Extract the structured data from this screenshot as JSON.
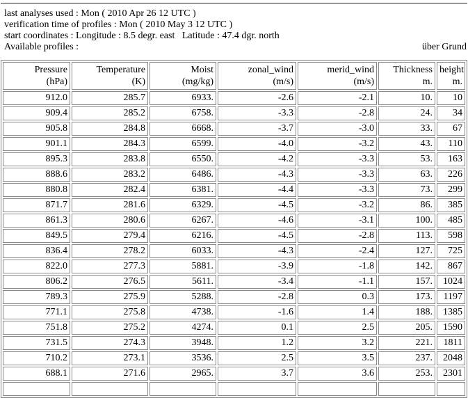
{
  "header": {
    "lines": [
      "last analyses used : Mon ( 2010 Apr 26 12 UTC )",
      "verification time of profiles : Mon ( 2010 May 3 12 UTC )",
      "start coordinates : Longitude : 8.5 degr. east   Latitude : 47.4 dgr. north"
    ],
    "available_profiles_label": "Available profiles :",
    "above_ground_note": "über Grund"
  },
  "table": {
    "columns": [
      {
        "label": "Pressure",
        "unit": "(hPa)"
      },
      {
        "label": "Temperature",
        "unit": "(K)"
      },
      {
        "label": "Moist",
        "unit": "(mg/kg)"
      },
      {
        "label": "zonal_wind",
        "unit": "(m/s)"
      },
      {
        "label": "merid_wind",
        "unit": "(m/s)"
      },
      {
        "label": "Thickness",
        "unit": "m."
      },
      {
        "label": "height",
        "unit": "m."
      }
    ],
    "rows": [
      [
        "912.0",
        "285.7",
        "6933.",
        "-2.6",
        "-2.1",
        "10.",
        "10"
      ],
      [
        "909.4",
        "285.2",
        "6758.",
        "-3.3",
        "-2.8",
        "24.",
        "34"
      ],
      [
        "905.8",
        "284.8",
        "6668.",
        "-3.7",
        "-3.0",
        "33.",
        "67"
      ],
      [
        "901.1",
        "284.3",
        "6599.",
        "-4.0",
        "-3.2",
        "43.",
        "110"
      ],
      [
        "895.3",
        "283.8",
        "6550.",
        "-4.2",
        "-3.3",
        "53.",
        "163"
      ],
      [
        "888.6",
        "283.2",
        "6486.",
        "-4.3",
        "-3.3",
        "63.",
        "226"
      ],
      [
        "880.8",
        "282.4",
        "6381.",
        "-4.4",
        "-3.3",
        "73.",
        "299"
      ],
      [
        "871.7",
        "281.6",
        "6329.",
        "-4.5",
        "-3.2",
        "86.",
        "385"
      ],
      [
        "861.3",
        "280.6",
        "6267.",
        "-4.6",
        "-3.1",
        "100.",
        "485"
      ],
      [
        "849.5",
        "279.4",
        "6216.",
        "-4.5",
        "-2.8",
        "113.",
        "598"
      ],
      [
        "836.4",
        "278.2",
        "6033.",
        "-4.3",
        "-2.4",
        "127.",
        "725"
      ],
      [
        "822.0",
        "277.3",
        "5881.",
        "-3.9",
        "-1.8",
        "142.",
        "867"
      ],
      [
        "806.2",
        "276.5",
        "5611.",
        "-3.4",
        "-1.1",
        "157.",
        "1024"
      ],
      [
        "789.3",
        "275.9",
        "5288.",
        "-2.8",
        "0.3",
        "173.",
        "1197"
      ],
      [
        "771.1",
        "275.8",
        "4738.",
        "-1.6",
        "1.4",
        "188.",
        "1385"
      ],
      [
        "751.8",
        "275.2",
        "4274.",
        "0.1",
        "2.5",
        "205.",
        "1590"
      ],
      [
        "731.5",
        "274.3",
        "3948.",
        "1.2",
        "3.2",
        "221.",
        "1811"
      ],
      [
        "710.2",
        "273.1",
        "3536.",
        "2.5",
        "3.5",
        "237.",
        "2048"
      ],
      [
        "688.1",
        "271.6",
        "2965.",
        "3.7",
        "3.6",
        "253.",
        "2301"
      ]
    ],
    "truncated_next_row": true
  }
}
